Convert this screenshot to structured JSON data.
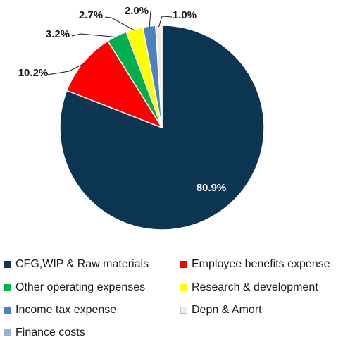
{
  "chart_data": {
    "type": "pie",
    "title": "",
    "slices": [
      {
        "name": "CFG,WIP & Raw materials",
        "value": 80.9,
        "label": "80.9%",
        "color": "#0b3550"
      },
      {
        "name": "Employee benefits expense",
        "value": 10.2,
        "label": "10.2%",
        "color": "#ff0000"
      },
      {
        "name": "Other operating expenses",
        "value": 3.2,
        "label": "3.2%",
        "color": "#00b050"
      },
      {
        "name": "Research & development",
        "value": 2.7,
        "label": "2.7%",
        "color": "#ffff00"
      },
      {
        "name": "Income tax expense",
        "value": 2.0,
        "label": "2.0%",
        "color": "#4f81bd"
      },
      {
        "name": "Depn & Amort",
        "value": 1.0,
        "label": "1.0%",
        "color": "#eeece1"
      },
      {
        "name": "Finance costs",
        "value": 0.0,
        "label": "",
        "color": "#95b3d7"
      }
    ],
    "legend_position": "bottom"
  }
}
